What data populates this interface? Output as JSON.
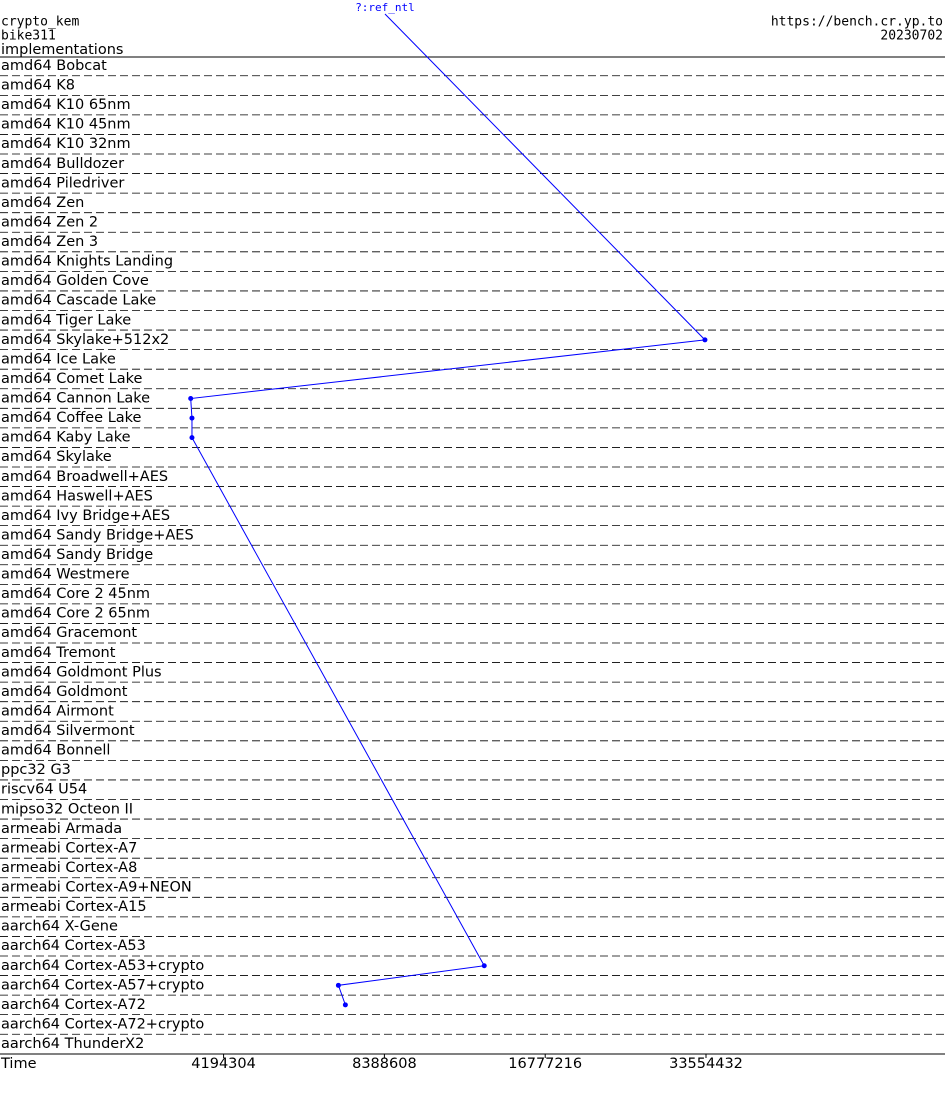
{
  "chart_data": {
    "type": "line",
    "orientation": "horizontal",
    "title": "crypto_kem",
    "subtitle": "bike311",
    "y_label": "implementations",
    "source": "https://bench.cr.yp.to",
    "date": "20230702",
    "x_label": "Time",
    "x_log": true,
    "xlim": [
      1600000,
      94000000
    ],
    "xticks": [
      4194304,
      8388608,
      16777216,
      33554432
    ],
    "categories": [
      "amd64 Bobcat",
      "amd64 K8",
      "amd64 K10 65nm",
      "amd64 K10 45nm",
      "amd64 K10 32nm",
      "amd64 Bulldozer",
      "amd64 Piledriver",
      "amd64 Zen",
      "amd64 Zen 2",
      "amd64 Zen 3",
      "amd64 Knights Landing",
      "amd64 Golden Cove",
      "amd64 Cascade Lake",
      "amd64 Tiger Lake",
      "amd64 Skylake+512x2",
      "amd64 Ice Lake",
      "amd64 Comet Lake",
      "amd64 Cannon Lake",
      "amd64 Coffee Lake",
      "amd64 Kaby Lake",
      "amd64 Skylake",
      "amd64 Broadwell+AES",
      "amd64 Haswell+AES",
      "amd64 Ivy Bridge+AES",
      "amd64 Sandy Bridge+AES",
      "amd64 Sandy Bridge",
      "amd64 Westmere",
      "amd64 Core 2 45nm",
      "amd64 Core 2 65nm",
      "amd64 Gracemont",
      "amd64 Tremont",
      "amd64 Goldmont Plus",
      "amd64 Goldmont",
      "amd64 Airmont",
      "amd64 Silvermont",
      "amd64 Bonnell",
      "ppc32 G3",
      "riscv64 U54",
      "mipso32 Octeon II",
      "armeabi Armada",
      "armeabi Cortex-A7",
      "armeabi Cortex-A8",
      "armeabi Cortex-A9+NEON",
      "armeabi Cortex-A15",
      "aarch64 X-Gene",
      "aarch64 Cortex-A53",
      "aarch64 Cortex-A53+crypto",
      "aarch64 Cortex-A57+crypto",
      "aarch64 Cortex-A72",
      "aarch64 Cortex-A72+crypto",
      "aarch64 ThunderX2"
    ],
    "series": [
      {
        "name": "?:ref_ntl",
        "color": "#0000ff",
        "values": [
          null,
          null,
          null,
          null,
          null,
          null,
          null,
          null,
          null,
          null,
          null,
          null,
          null,
          null,
          33400000,
          null,
          null,
          3640000,
          3660000,
          3660000,
          null,
          null,
          null,
          null,
          null,
          null,
          null,
          null,
          null,
          null,
          null,
          null,
          null,
          null,
          null,
          null,
          null,
          null,
          null,
          null,
          null,
          null,
          null,
          null,
          null,
          null,
          12900000,
          6880000,
          7090000,
          null,
          null
        ]
      }
    ]
  }
}
